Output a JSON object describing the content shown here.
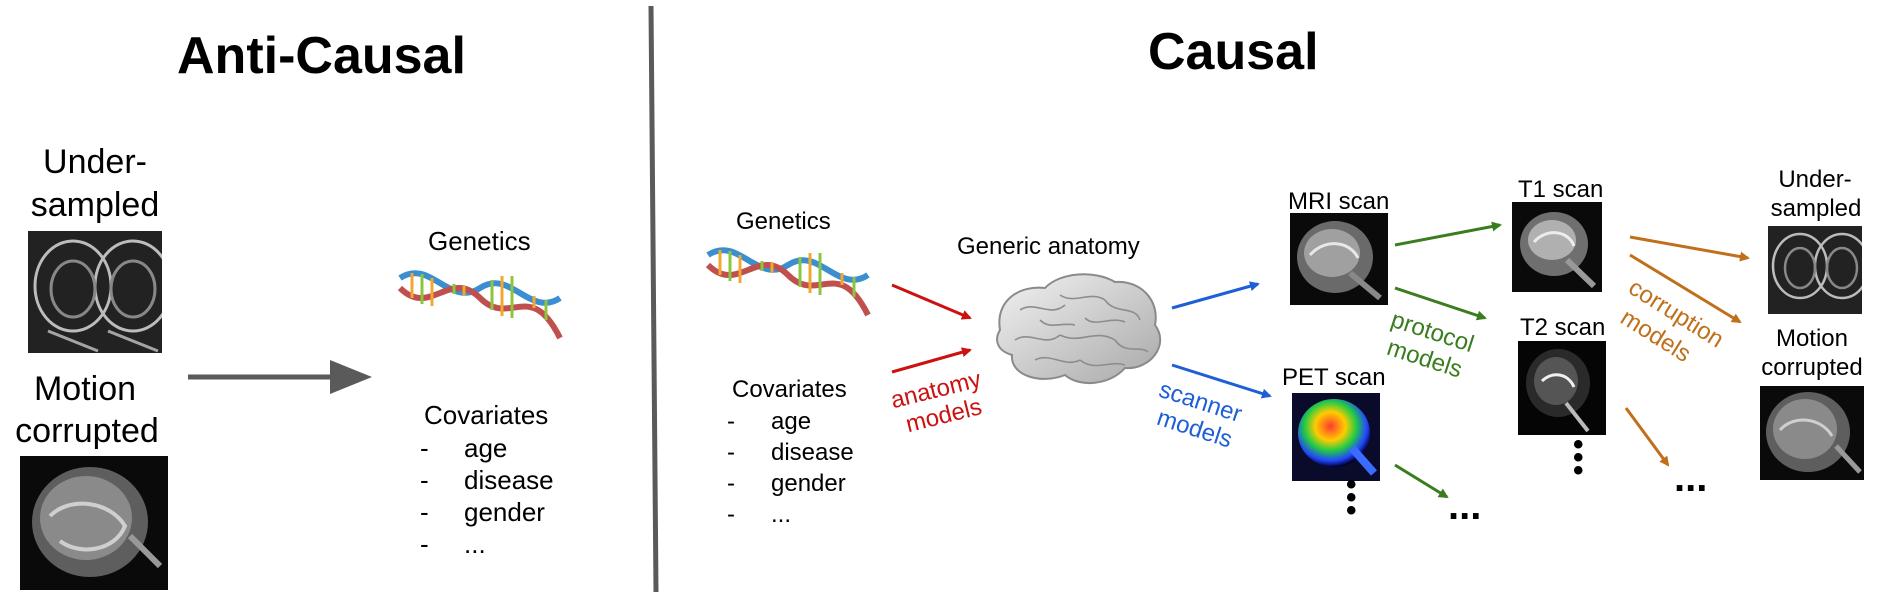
{
  "left": {
    "title": "Anti-Causal",
    "undersampled": [
      "Under-",
      "sampled"
    ],
    "motion": [
      "Motion",
      "corrupted"
    ],
    "genetics": "Genetics",
    "covariates": {
      "heading": "Covariates",
      "items": [
        "age",
        "disease",
        "gender",
        "..."
      ]
    }
  },
  "right": {
    "title": "Causal",
    "genetics": "Genetics",
    "covariates": {
      "heading": "Covariates",
      "items": [
        "age",
        "disease",
        "gender",
        "..."
      ]
    },
    "anatomy_models": [
      "anatomy",
      "models"
    ],
    "generic_anatomy": "Generic anatomy",
    "mri_scan": "MRI scan",
    "pet_scan": "PET scan",
    "scanner_models": [
      "scanner",
      "models"
    ],
    "protocol_models": [
      "protocol",
      "models"
    ],
    "t1_scan": "T1 scan",
    "t2_scan": "T2 scan",
    "corruption_models": [
      "corruption",
      "models"
    ],
    "undersampled": [
      "Under-",
      "sampled"
    ],
    "motion": [
      "Motion",
      "corrupted"
    ],
    "ellipsis": "..."
  },
  "colors": {
    "anatomy": "#cc1111",
    "scanner": "#1f5fd6",
    "protocol": "#3a7d1e",
    "corruption": "#c0701a",
    "divider": "#5a5a5a",
    "big_arrow": "#5a5a5a"
  }
}
